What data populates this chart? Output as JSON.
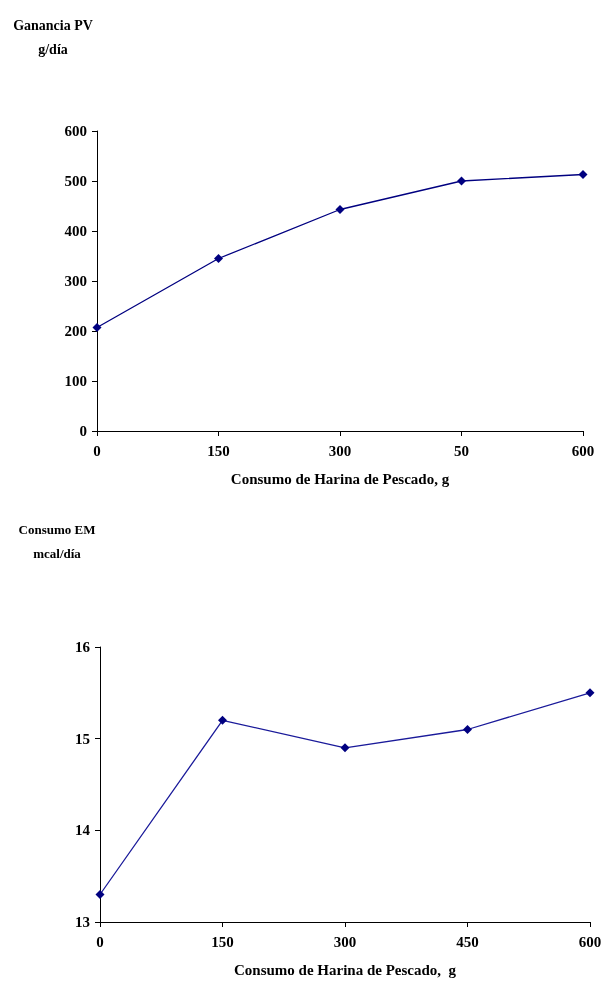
{
  "chart_data": [
    {
      "type": "line",
      "ylabel": "Ganancia PV\ng/día",
      "xlabel": "Consumo de Harina de Pescado, g",
      "categories": [
        "0",
        "150",
        "300",
        "50",
        "600"
      ],
      "series": [
        {
          "color": "#000080",
          "values": [
            207,
            345,
            443,
            500,
            513
          ]
        }
      ],
      "ylim": [
        0,
        600
      ],
      "yticks": [
        0,
        100,
        200,
        300,
        400,
        500,
        600
      ],
      "grid": false,
      "marker": "diamond",
      "line_style": "solid"
    },
    {
      "type": "line",
      "ylabel": "Consumo EM\nmcal/día",
      "xlabel": "Consumo de Harina de Pescado,  g",
      "categories": [
        "0",
        "150",
        "300",
        "450",
        "600"
      ],
      "series": [
        {
          "color": "#1a1a9a",
          "values": [
            13.3,
            15.2,
            14.9,
            15.1,
            15.5
          ]
        }
      ],
      "ylim": [
        13,
        16
      ],
      "yticks": [
        13,
        14,
        15,
        16
      ],
      "grid": false,
      "marker": "diamond",
      "line_style": "solid"
    }
  ]
}
